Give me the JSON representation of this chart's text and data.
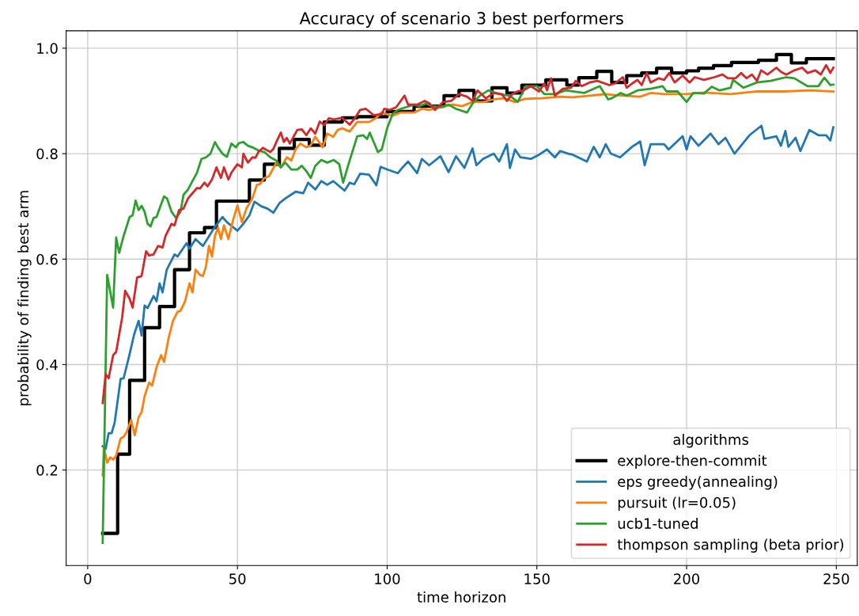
{
  "chart_data": {
    "type": "line",
    "title": "Accuracy of scenario 3 best performers",
    "xlabel": "time horizon",
    "ylabel": "probability of finding best arm",
    "legend_title": "algorithms",
    "legend": "bottom right",
    "grid": true,
    "xlim": [
      -7.2,
      257
    ],
    "xticks": [
      0,
      50,
      100,
      150,
      200,
      250
    ],
    "ylim": [
      0.019,
      1.033
    ],
    "yticks": [
      0.2,
      0.4,
      0.6,
      0.8,
      {
        "value": 1,
        "label": "1.0"
      }
    ],
    "series": [
      {
        "name": "explore-then-commit",
        "type": "step",
        "color": "#000000",
        "x": [
          5,
          10,
          14,
          19,
          24,
          29,
          34,
          39,
          43,
          54,
          59,
          64,
          69,
          74,
          79,
          85,
          90,
          100,
          109,
          119,
          124,
          129,
          135,
          140,
          145,
          153,
          160,
          164,
          170,
          175,
          180,
          185,
          190,
          195,
          200,
          204,
          209,
          215,
          224,
          230,
          235,
          240,
          249
        ],
        "values": [
          0.08,
          0.23,
          0.37,
          0.47,
          0.51,
          0.58,
          0.65,
          0.66,
          0.71,
          0.75,
          0.78,
          0.81,
          0.827,
          0.816,
          0.86,
          0.868,
          0.87,
          0.88,
          0.89,
          0.91,
          0.92,
          0.9,
          0.925,
          0.915,
          0.93,
          0.94,
          0.93,
          0.944,
          0.956,
          0.935,
          0.948,
          0.953,
          0.962,
          0.953,
          0.957,
          0.962,
          0.967,
          0.973,
          0.977,
          0.988,
          0.972,
          0.98,
          0.98
        ]
      },
      {
        "name": "eps greedy(annealing)",
        "color": "#1f77b4",
        "x": [
          5,
          6,
          7,
          8,
          9,
          11,
          12,
          14,
          15.5,
          17,
          18,
          19,
          20,
          22,
          23,
          24,
          25,
          26.4,
          29,
          30,
          33,
          34,
          36,
          38.5,
          42,
          45,
          46.5,
          50,
          52,
          54,
          55.7,
          58,
          60,
          62,
          64,
          66,
          69.5,
          72,
          73.6,
          76,
          78,
          80,
          82,
          85.8,
          87.5,
          89,
          91,
          94,
          96.4,
          97.8,
          100,
          103.6,
          105,
          107,
          110,
          111.6,
          114,
          117.8,
          120.5,
          123,
          125.8,
          128.5,
          129.8,
          132,
          135.6,
          137.4,
          140,
          141,
          142.7,
          144.5,
          148,
          150.7,
          153.4,
          156,
          157.8,
          160.5,
          162,
          166.7,
          169,
          171,
          173,
          174.7,
          177.8,
          181.8,
          184.5,
          186,
          188,
          192.5,
          194,
          198.7,
          200,
          201.3,
          204,
          208,
          210.7,
          213,
          216,
          221,
          225,
          226,
          230,
          231.5,
          233,
          234,
          236.4,
          238,
          241,
          244,
          246.6,
          248,
          249
        ],
        "values": [
          0.245,
          0.24,
          0.27,
          0.27,
          0.29,
          0.373,
          0.374,
          0.42,
          0.457,
          0.483,
          0.455,
          0.512,
          0.507,
          0.53,
          0.52,
          0.554,
          0.537,
          0.58,
          0.609,
          0.605,
          0.63,
          0.62,
          0.638,
          0.625,
          0.657,
          0.68,
          0.67,
          0.654,
          0.667,
          0.683,
          0.709,
          0.7,
          0.696,
          0.688,
          0.706,
          0.715,
          0.728,
          0.725,
          0.745,
          0.732,
          0.748,
          0.741,
          0.748,
          0.73,
          0.745,
          0.742,
          0.762,
          0.76,
          0.74,
          0.775,
          0.77,
          0.763,
          0.773,
          0.785,
          0.763,
          0.79,
          0.778,
          0.795,
          0.765,
          0.795,
          0.773,
          0.81,
          0.778,
          0.79,
          0.8,
          0.785,
          0.818,
          0.773,
          0.808,
          0.793,
          0.79,
          0.798,
          0.808,
          0.793,
          0.805,
          0.8,
          0.798,
          0.785,
          0.813,
          0.793,
          0.818,
          0.8,
          0.793,
          0.813,
          0.823,
          0.778,
          0.818,
          0.818,
          0.808,
          0.833,
          0.808,
          0.833,
          0.815,
          0.838,
          0.818,
          0.83,
          0.8,
          0.835,
          0.853,
          0.828,
          0.833,
          0.815,
          0.843,
          0.813,
          0.83,
          0.805,
          0.845,
          0.835,
          0.835,
          0.825,
          0.85
        ]
      },
      {
        "name": "pursuit (lr=0.05)",
        "color": "#ff7f0e",
        "x": [
          5,
          5.4,
          6.5,
          7.5,
          8.5,
          9.5,
          11,
          12,
          13,
          14.5,
          15.7,
          17,
          18,
          19,
          20.5,
          21.5,
          23,
          24.5,
          25.5,
          27,
          28.5,
          30,
          31,
          32.5,
          34,
          35,
          36,
          37.5,
          38.5,
          39.5,
          40.5,
          41.5,
          42.5,
          43.5,
          44.5,
          45.5,
          47,
          48.5,
          50,
          51.5,
          53,
          55,
          56.5,
          57.5,
          59,
          60.5,
          63,
          64.5,
          66.5,
          68,
          69.5,
          71,
          73,
          74.5,
          76,
          78.5,
          80,
          82,
          83.5,
          85,
          87.5,
          90,
          94,
          96.4,
          98,
          101.8,
          104.4,
          109,
          111.6,
          114,
          117.8,
          122,
          125,
          128.5,
          132,
          135.6,
          139,
          142.7,
          146,
          151.6,
          157.8,
          162,
          167.6,
          173,
          176,
          184.5,
          188,
          192.5,
          200,
          205.8,
          214.7,
          223.5,
          232.4,
          241.3,
          249
        ],
        "values": [
          0.19,
          0.243,
          0.214,
          0.224,
          0.22,
          0.227,
          0.26,
          0.263,
          0.272,
          0.295,
          0.266,
          0.3,
          0.31,
          0.34,
          0.366,
          0.36,
          0.395,
          0.418,
          0.405,
          0.45,
          0.483,
          0.5,
          0.502,
          0.52,
          0.554,
          0.537,
          0.58,
          0.57,
          0.568,
          0.586,
          0.625,
          0.605,
          0.644,
          0.66,
          0.638,
          0.664,
          0.638,
          0.673,
          0.702,
          0.67,
          0.696,
          0.715,
          0.741,
          0.742,
          0.754,
          0.757,
          0.783,
          0.774,
          0.793,
          0.787,
          0.809,
          0.819,
          0.812,
          0.816,
          0.832,
          0.812,
          0.838,
          0.832,
          0.845,
          0.848,
          0.842,
          0.86,
          0.86,
          0.868,
          0.878,
          0.872,
          0.878,
          0.878,
          0.885,
          0.883,
          0.888,
          0.893,
          0.89,
          0.898,
          0.898,
          0.903,
          0.905,
          0.898,
          0.904,
          0.905,
          0.908,
          0.907,
          0.91,
          0.913,
          0.911,
          0.908,
          0.915,
          0.913,
          0.913,
          0.916,
          0.913,
          0.918,
          0.918,
          0.92,
          0.918
        ]
      },
      {
        "name": "ucb1-tuned",
        "color": "#2ca02c",
        "x": [
          5,
          6.5,
          8.5,
          9.5,
          10.5,
          12,
          14,
          15,
          16,
          17,
          18,
          19,
          20,
          21,
          22,
          23,
          24,
          25.5,
          26.5,
          28,
          29.5,
          31,
          32,
          33.5,
          35,
          36.5,
          38,
          39.5,
          41,
          42.5,
          43.5,
          45,
          46.5,
          48,
          49.5,
          50.5,
          52,
          53.5,
          55,
          57,
          59,
          61,
          63,
          64.5,
          66,
          68,
          70,
          71.5,
          73,
          74.5,
          76,
          78,
          80,
          82.2,
          84,
          85.3,
          87,
          90,
          92,
          93.3,
          94.2,
          96.9,
          98.2,
          100,
          101.8,
          103.6,
          106.2,
          109,
          110.7,
          113,
          115,
          117.8,
          120.5,
          123,
          126.7,
          128.5,
          131,
          133.8,
          137.4,
          141,
          143.6,
          146.3,
          150,
          152.5,
          156,
          159.6,
          165.8,
          171,
          173.8,
          175,
          178,
          180,
          183.6,
          188,
          192,
          193.3,
          197,
          200,
          202.2,
          205.8,
          208.4,
          211,
          214.7,
          215.5,
          219,
          223.5,
          228,
          233.3,
          236,
          240.4,
          244,
          246,
          248,
          249
        ],
        "values": [
          0.062,
          0.57,
          0.508,
          0.641,
          0.612,
          0.644,
          0.68,
          0.683,
          0.711,
          0.693,
          0.701,
          0.69,
          0.667,
          0.662,
          0.678,
          0.68,
          0.696,
          0.719,
          0.715,
          0.69,
          0.678,
          0.69,
          0.722,
          0.732,
          0.748,
          0.764,
          0.79,
          0.793,
          0.8,
          0.822,
          0.812,
          0.8,
          0.794,
          0.819,
          0.812,
          0.82,
          0.822,
          0.815,
          0.812,
          0.806,
          0.803,
          0.793,
          0.787,
          0.774,
          0.783,
          0.77,
          0.77,
          0.777,
          0.767,
          0.754,
          0.777,
          0.788,
          0.783,
          0.788,
          0.78,
          0.745,
          0.778,
          0.833,
          0.835,
          0.828,
          0.84,
          0.803,
          0.808,
          0.848,
          0.875,
          0.883,
          0.888,
          0.893,
          0.89,
          0.895,
          0.89,
          0.888,
          0.893,
          0.885,
          0.878,
          0.895,
          0.91,
          0.92,
          0.913,
          0.91,
          0.898,
          0.928,
          0.928,
          0.913,
          0.913,
          0.92,
          0.915,
          0.928,
          0.903,
          0.905,
          0.915,
          0.91,
          0.92,
          0.923,
          0.928,
          0.918,
          0.918,
          0.898,
          0.915,
          0.914,
          0.927,
          0.92,
          0.925,
          0.94,
          0.925,
          0.935,
          0.938,
          0.945,
          0.943,
          0.928,
          0.928,
          0.944,
          0.93,
          0.931
        ]
      },
      {
        "name": "thompson sampling (beta prior)",
        "color": "#d62728",
        "x": [
          5,
          6,
          7,
          8.5,
          9.5,
          11.5,
          12.5,
          14,
          15,
          16.5,
          18,
          19.5,
          20.5,
          22,
          23.5,
          25,
          26,
          28,
          29,
          30.5,
          32,
          33.5,
          35,
          36.5,
          37.5,
          39,
          40,
          41.5,
          43,
          44.5,
          45.5,
          47,
          48,
          50,
          51.5,
          52,
          53.5,
          55,
          56,
          57,
          58.5,
          60,
          61,
          62,
          63,
          64.5,
          65.5,
          66.5,
          67.5,
          69,
          70,
          71.5,
          73,
          74.5,
          76,
          77.5,
          79,
          80.5,
          82.2,
          84.9,
          87.5,
          89.3,
          91,
          92.9,
          95.5,
          98.2,
          99,
          100.9,
          103,
          105.8,
          107,
          110,
          112.5,
          114.2,
          116,
          118.7,
          121.4,
          124,
          126.7,
          128.5,
          130.2,
          133,
          135.6,
          138.3,
          140,
          141.8,
          143.6,
          145.4,
          148,
          150.7,
          152.5,
          153.4,
          154.7,
          156,
          158.7,
          161.4,
          163,
          165,
          167.6,
          170.2,
          174.2,
          176,
          178.7,
          180,
          181.8,
          183.6,
          185,
          186.7,
          188,
          190.7,
          192.5,
          194.2,
          196,
          198.7,
          201,
          202.7,
          205.8,
          209.3,
          212,
          213.8,
          216.4,
          218.2,
          220,
          221.8,
          223.5,
          224.9,
          227,
          230,
          231.5,
          233.3,
          236,
          238.6,
          240.4,
          243,
          244.8,
          246.6,
          248,
          249
        ],
        "values": [
          0.327,
          0.382,
          0.374,
          0.418,
          0.424,
          0.489,
          0.54,
          0.525,
          0.508,
          0.565,
          0.568,
          0.615,
          0.607,
          0.609,
          0.625,
          0.622,
          0.644,
          0.667,
          0.664,
          0.693,
          0.696,
          0.715,
          0.725,
          0.735,
          0.734,
          0.745,
          0.738,
          0.751,
          0.774,
          0.754,
          0.774,
          0.751,
          0.764,
          0.78,
          0.774,
          0.8,
          0.783,
          0.793,
          0.792,
          0.803,
          0.811,
          0.806,
          0.803,
          0.809,
          0.822,
          0.84,
          0.822,
          0.83,
          0.819,
          0.835,
          0.845,
          0.846,
          0.835,
          0.848,
          0.838,
          0.861,
          0.854,
          0.867,
          0.865,
          0.868,
          0.855,
          0.868,
          0.883,
          0.885,
          0.873,
          0.875,
          0.885,
          0.883,
          0.888,
          0.91,
          0.893,
          0.893,
          0.9,
          0.895,
          0.883,
          0.898,
          0.9,
          0.913,
          0.908,
          0.9,
          0.92,
          0.905,
          0.915,
          0.913,
          0.9,
          0.913,
          0.918,
          0.92,
          0.928,
          0.918,
          0.933,
          0.92,
          0.943,
          0.91,
          0.923,
          0.925,
          0.938,
          0.928,
          0.935,
          0.938,
          0.93,
          0.933,
          0.945,
          0.925,
          0.933,
          0.94,
          0.93,
          0.953,
          0.935,
          0.943,
          0.94,
          0.953,
          0.935,
          0.948,
          0.935,
          0.945,
          0.94,
          0.945,
          0.95,
          0.943,
          0.943,
          0.953,
          0.943,
          0.95,
          0.938,
          0.958,
          0.95,
          0.963,
          0.955,
          0.95,
          0.958,
          0.963,
          0.953,
          0.958,
          0.95,
          0.968,
          0.953,
          0.963
        ]
      }
    ]
  }
}
